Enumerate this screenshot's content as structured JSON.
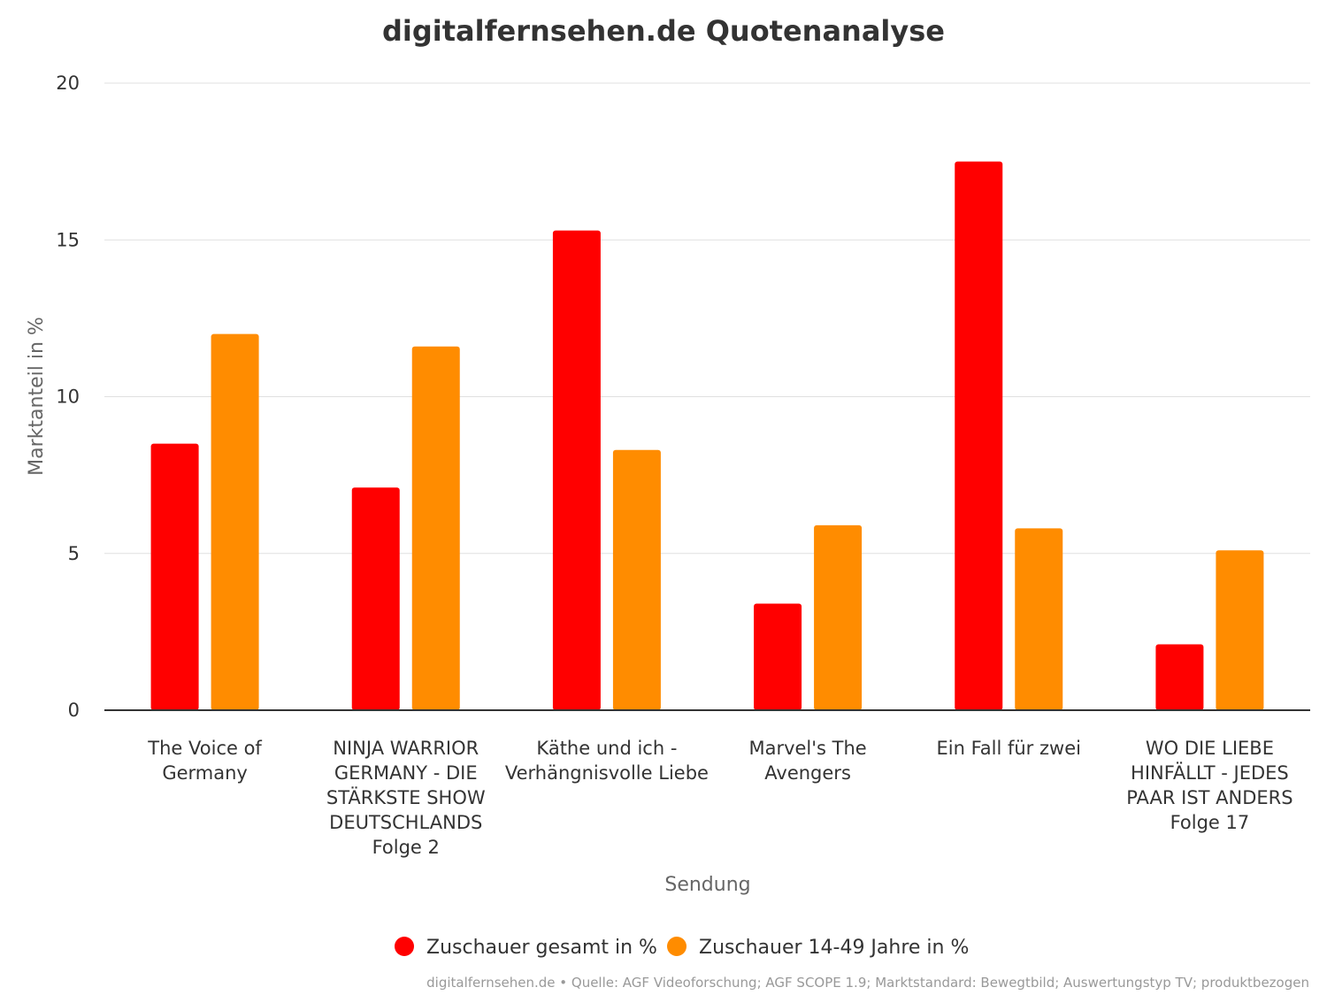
{
  "chart_data": {
    "type": "bar",
    "title": "digitalfernsehen.de Quotenanalyse",
    "xlabel": "Sendung",
    "ylabel": "Marktanteil in %",
    "ylim": [
      0,
      20
    ],
    "yticks": [
      0,
      5,
      10,
      15,
      20
    ],
    "grid": true,
    "legend_position": "bottom",
    "categories": [
      [
        "The Voice of",
        "Germany"
      ],
      [
        "NINJA WARRIOR",
        "GERMANY - DIE",
        "STÄRKSTE SHOW",
        "DEUTSCHLANDS",
        "Folge 2"
      ],
      [
        "Käthe und ich -",
        "Verhängnisvolle Liebe"
      ],
      [
        "Marvel's The",
        "Avengers"
      ],
      [
        "Ein Fall für zwei"
      ],
      [
        "WO DIE LIEBE",
        "HINFÄLLT - JEDES",
        "PAAR IST ANDERS",
        "Folge 17"
      ]
    ],
    "series": [
      {
        "name": "Zuschauer gesamt in %",
        "color": "#ff0000",
        "values": [
          8.5,
          7.1,
          15.3,
          3.4,
          17.5,
          2.1
        ]
      },
      {
        "name": "Zuschauer 14-49 Jahre in %",
        "color": "#ff8c00",
        "values": [
          12.0,
          11.6,
          8.3,
          5.9,
          5.8,
          5.1
        ]
      }
    ]
  },
  "credits": "digitalfernsehen.de • Quelle: AGF Videoforschung; AGF SCOPE 1.9; Marktstandard: Bewegtbild; Auswertungstyp TV; produktbezogen"
}
